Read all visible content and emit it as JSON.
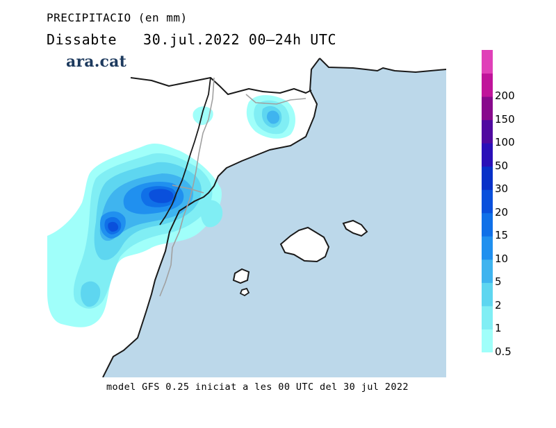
{
  "title": {
    "line1": "PRECIPITACIO (en mm)",
    "line2": "Dissabte   30.jul.2022 00–24h UTC"
  },
  "brand": "ara.cat",
  "footer": "model GFS 0.25 iniciat a les 00 UTC del 30 jul 2022",
  "legend": {
    "levels": [
      "0.5",
      "1",
      "2",
      "5",
      "10",
      "15",
      "20",
      "30",
      "50",
      "100",
      "150",
      "200"
    ],
    "colors": [
      "#a0fffa",
      "#80eef4",
      "#5ed6f0",
      "#3fb4ef",
      "#2090ef",
      "#1070e8",
      "#0a50dc",
      "#0830c8",
      "#2a10b8",
      "#500aa0",
      "#880a8c",
      "#c0149a",
      "#e040b8"
    ]
  },
  "colors": {
    "sea": "#bcd8ea",
    "land": "#ffffff",
    "coast": "#1a1a1a",
    "border": "#a0a0a0"
  }
}
